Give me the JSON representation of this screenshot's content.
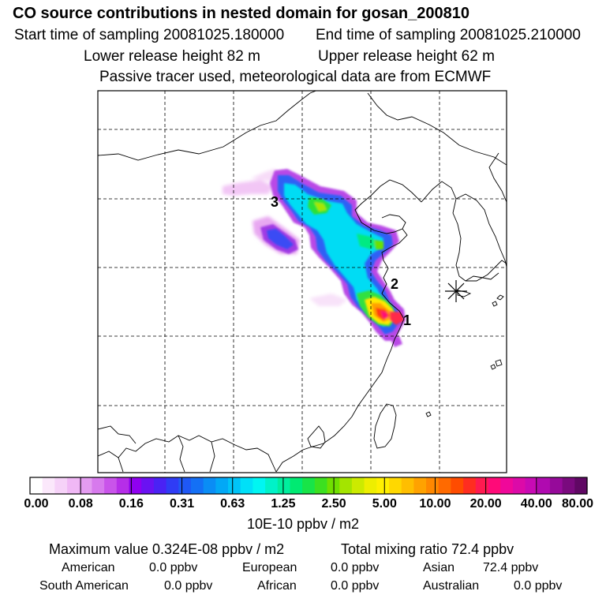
{
  "title": "CO  source contributions in nested domain for gosan_200810",
  "subtitle": {
    "start_time": "Start time of sampling 20081025.180000",
    "end_time": "End time of sampling 20081025.210000",
    "lower_height": "Lower release height   82 m",
    "upper_height": "Upper release height   62 m",
    "note": "Passive tracer used, meteorological data are from ECMWF"
  },
  "map": {
    "source_labels": [
      "1",
      "2",
      "3"
    ],
    "receptor_marker": "asterisk-receptor"
  },
  "colorbar": {
    "tick_labels": [
      "0.00",
      "0.08",
      "0.16",
      "0.31",
      "0.63",
      "1.25",
      "2.50",
      "5.00",
      "10.00",
      "20.00",
      "40.00",
      "80.00"
    ],
    "colors": [
      "#ffffff",
      "#fbe8fb",
      "#f6d2f8",
      "#f0b8f5",
      "#e49cf1",
      "#d77aed",
      "#c954ea",
      "#b62ee8",
      "#8f00f0",
      "#6a12f2",
      "#4a22f4",
      "#2f3cf5",
      "#1f58f5",
      "#1470f5",
      "#0a8df5",
      "#02a8f6",
      "#00c4f8",
      "#00e0f8",
      "#00f6f2",
      "#00f2c8",
      "#00ee9e",
      "#00ea72",
      "#18e448",
      "#3ce020",
      "#70e000",
      "#a4e400",
      "#ccea00",
      "#eeee00",
      "#fff000",
      "#ffd800",
      "#ffbe00",
      "#ffa200",
      "#ff8800",
      "#ff6a00",
      "#ff4c00",
      "#ff2d20",
      "#ff1a50",
      "#ff0a78",
      "#f0089a",
      "#dc0aa8",
      "#c80ab4",
      "#b00ab0",
      "#960a9a",
      "#7a0a7e",
      "#600864"
    ],
    "units": "10E-10 ppbv / m2"
  },
  "stats": {
    "max_value": "Maximum value  0.324E-08 ppbv / m2",
    "total": "Total mixing ratio      72.4 ppbv",
    "american_label": "American",
    "american_value": "0.0 ppbv",
    "european_label": "European",
    "european_value": "0.0 ppbv",
    "asian_label": "Asian",
    "asian_value": "72.4 ppbv",
    "south_american_label": "South American",
    "south_american_value": "0.0 ppbv",
    "african_label": "African",
    "african_value": "0.0 ppbv",
    "australian_label": "Australian",
    "australian_value": "0.0 ppbv"
  }
}
